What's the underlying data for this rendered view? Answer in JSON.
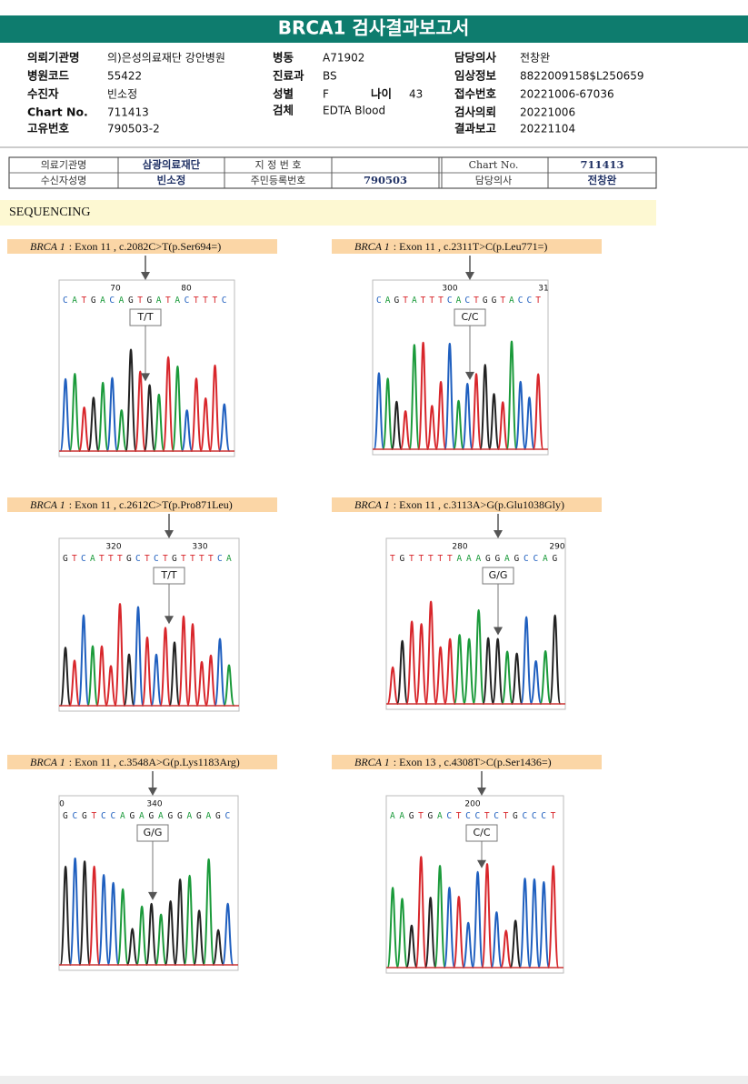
{
  "header": {
    "title": "BRCA1 검사결과보고서"
  },
  "info": {
    "left": [
      {
        "label": "의뢰기관명",
        "value": "의)은성의료재단 강안병원"
      },
      {
        "label": "병원코드",
        "value": "55422"
      },
      {
        "label": "수진자",
        "value": "빈소정"
      },
      {
        "label": "Chart No.",
        "value": "711413"
      },
      {
        "label": "고유번호",
        "value": "790503-2"
      }
    ],
    "middle": [
      {
        "label": "병동",
        "value": "A71902"
      },
      {
        "label": "진료과",
        "value": "BS"
      },
      {
        "label": "성별",
        "value": "F"
      },
      {
        "label": "검체",
        "value": "EDTA Blood"
      }
    ],
    "age": {
      "label": "나이",
      "value": "43"
    },
    "right": [
      {
        "label": "담당의사",
        "value": "전창완"
      },
      {
        "label": "임상정보",
        "value": "8822009158$L250659"
      },
      {
        "label": "접수번호",
        "value": "20221006-67036"
      },
      {
        "label": "검사의뢰",
        "value": "20221006"
      },
      {
        "label": "결과보고",
        "value": "20221104"
      }
    ]
  },
  "scan": {
    "rows": [
      {
        "label1": "의료기관명",
        "value1": "삼광의료재단",
        "label2": "지 정 번 호",
        "label3": "Chart No.",
        "value3": "711413"
      },
      {
        "label1": "수신자성명",
        "value1": "빈소정",
        "label2": "주민등록번호",
        "value2": "790503",
        "label3": "담당의사",
        "value3": "전창완"
      }
    ]
  },
  "section": "SEQUENCING",
  "panels": [
    {
      "gene": "BRCA 1",
      "variant": ": Exon 11 , c.2082C>T(p.Ser694=)",
      "positions": [
        "70",
        "80"
      ],
      "sequence": "CATGACAGTGATACTTTC",
      "genotype": "T/T"
    },
    {
      "gene": "BRCA 1",
      "variant": ": Exon 11 , c.2311T>C(p.Leu771=)",
      "positions": [
        "300",
        "31"
      ],
      "sequence": "CAGTATTTCACTGGTACCT",
      "genotype": "C/C"
    },
    {
      "gene": "BRCA 1",
      "variant": ": Exon 11 , c.2612C>T(p.Pro871Leu)",
      "positions": [
        "320",
        "330"
      ],
      "sequence": "GTCATTTGCTCTGTTTTCA",
      "genotype": "T/T"
    },
    {
      "gene": "BRCA 1",
      "variant": ": Exon 11 , c.3113A>G(p.Glu1038Gly)",
      "positions": [
        "280",
        "290"
      ],
      "sequence": "TGTTTTTAAAGGAGCCAG",
      "genotype": "G/G"
    },
    {
      "gene": "BRCA 1",
      "variant": ": Exon 11 , c.3548A>G(p.Lys1183Arg)",
      "positions": [
        "0",
        "340"
      ],
      "sequence": "GCGTCCAGAGAGGAGAGC",
      "genotype": "G/G"
    },
    {
      "gene": "BRCA 1",
      "variant": ": Exon 13 , c.4308T>C(p.Ser1436=)",
      "positions": [
        "200"
      ],
      "sequence": "AAGTGACTCCTCTGCCCT",
      "genotype": "C/C"
    }
  ]
}
